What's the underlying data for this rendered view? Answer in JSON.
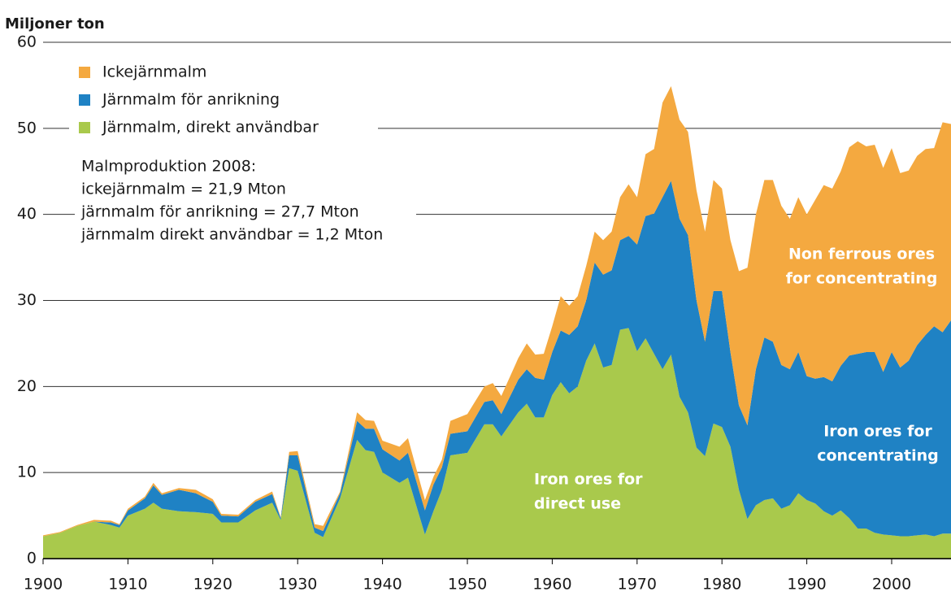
{
  "chart_data": {
    "type": "stacked_area",
    "axis_title": "Miljoner ton",
    "x": [
      1900,
      1902,
      1904,
      1906,
      1908,
      1909,
      1910,
      1912,
      1913,
      1914,
      1916,
      1918,
      1920,
      1921,
      1923,
      1925,
      1927,
      1928,
      1929,
      1930,
      1932,
      1933,
      1935,
      1937,
      1938,
      1939,
      1940,
      1942,
      1943,
      1945,
      1946,
      1947,
      1948,
      1950,
      1952,
      1953,
      1954,
      1956,
      1957,
      1958,
      1959,
      1960,
      1961,
      1962,
      1963,
      1964,
      1965,
      1966,
      1967,
      1968,
      1969,
      1970,
      1971,
      1972,
      1973,
      1974,
      1975,
      1976,
      1977,
      1978,
      1979,
      1980,
      1981,
      1982,
      1983,
      1984,
      1985,
      1986,
      1987,
      1988,
      1989,
      1990,
      1991,
      1992,
      1993,
      1994,
      1995,
      1996,
      1997,
      1998,
      1999,
      2000,
      2001,
      2002,
      2003,
      2004,
      2005,
      2006,
      2007
    ],
    "series": [
      {
        "name": "Järnmalm, direkt användbar",
        "color": "#a9c94c",
        "values": [
          2.6,
          3.0,
          3.8,
          4.3,
          3.9,
          3.6,
          5.0,
          5.8,
          6.5,
          5.8,
          5.5,
          5.4,
          5.2,
          4.2,
          4.2,
          5.6,
          6.5,
          4.5,
          10.5,
          10.2,
          3.0,
          2.5,
          7.0,
          13.8,
          12.6,
          12.4,
          10.0,
          8.8,
          9.4,
          2.8,
          5.5,
          8.0,
          12.0,
          12.3,
          15.6,
          15.6,
          14.2,
          17.0,
          18.0,
          16.4,
          16.4,
          19.0,
          20.5,
          19.2,
          20.0,
          23.0,
          25.0,
          22.2,
          22.5,
          26.6,
          26.8,
          24.1,
          25.6,
          23.8,
          22.0,
          23.7,
          18.8,
          17.0,
          12.9,
          11.9,
          15.7,
          15.3,
          13.0,
          8.0,
          4.6,
          6.2,
          6.8,
          7.0,
          5.8,
          6.2,
          7.6,
          6.8,
          6.4,
          5.5,
          5.0,
          5.6,
          4.7,
          3.5,
          3.5,
          3.0,
          2.8,
          2.7,
          2.6,
          2.6,
          2.7,
          2.8,
          2.6,
          2.9,
          2.9
        ]
      },
      {
        "name": "Järnmalm för anrikning",
        "color": "#1f82c4",
        "values": [
          0,
          0,
          0,
          0,
          0.3,
          0.3,
          0.6,
          1.2,
          2.0,
          1.6,
          2.5,
          2.2,
          1.4,
          0.8,
          0.7,
          1.0,
          1.0,
          0.2,
          1.5,
          1.8,
          0.6,
          0.7,
          0.6,
          2.2,
          2.5,
          2.7,
          2.7,
          2.6,
          2.9,
          2.8,
          3.1,
          2.6,
          2.5,
          2.5,
          2.6,
          2.8,
          2.6,
          3.8,
          4.0,
          4.6,
          4.4,
          5.0,
          6.0,
          6.8,
          7.0,
          7.0,
          9.4,
          10.8,
          11.0,
          10.4,
          10.7,
          12.4,
          14.2,
          16.3,
          20.0,
          20.2,
          20.7,
          20.6,
          17.1,
          13.3,
          15.4,
          15.8,
          11.0,
          9.8,
          10.9,
          15.8,
          18.9,
          18.2,
          16.7,
          15.8,
          16.4,
          14.4,
          14.5,
          15.6,
          15.6,
          16.8,
          18.9,
          20.3,
          20.5,
          21.0,
          18.9,
          21.3,
          19.6,
          20.4,
          22.1,
          23.2,
          24.4,
          23.4,
          24.8
        ]
      },
      {
        "name": "Ickejärnmalm",
        "color": "#f4a940",
        "values": [
          0.1,
          0.1,
          0.1,
          0.2,
          0.2,
          0.1,
          0.2,
          0.2,
          0.3,
          0.2,
          0.2,
          0.4,
          0.3,
          0.2,
          0.2,
          0.2,
          0.3,
          0.1,
          0.4,
          0.5,
          0.4,
          0.6,
          0.2,
          1.0,
          1.0,
          0.9,
          1.0,
          1.6,
          1.7,
          1.2,
          0.9,
          0.9,
          1.5,
          2.0,
          1.8,
          2.0,
          2.1,
          2.5,
          3.0,
          2.7,
          3.0,
          3.0,
          4.0,
          3.4,
          3.5,
          4.0,
          3.6,
          4.0,
          4.5,
          5.0,
          6.0,
          5.5,
          7.2,
          7.5,
          11.0,
          11.0,
          11.5,
          12.0,
          12.8,
          12.8,
          12.9,
          11.9,
          13.0,
          15.6,
          18.3,
          18.0,
          18.3,
          18.8,
          18.5,
          17.5,
          18.0,
          18.8,
          20.8,
          22.3,
          22.4,
          22.6,
          24.2,
          24.7,
          23.9,
          24.1,
          23.7,
          23.7,
          22.6,
          22.1,
          22.0,
          21.6,
          20.7,
          24.4,
          22.8
        ]
      }
    ],
    "legend_order": [
      2,
      1,
      0
    ],
    "annotations": [
      "Malmproduktion 2008:",
      "ickejärnmalm = 21,9 Mton",
      "järnmalm för anrikning = 27,7 Mton",
      "järnmalm direkt användbar = 1,2 Mton"
    ],
    "area_labels": [
      [
        "Non ferrous ores",
        "for concentrating"
      ],
      [
        "Iron ores for",
        "concentrating"
      ],
      [
        "Iron ores for",
        "direct use"
      ]
    ],
    "xlim": [
      1900,
      2007
    ],
    "xticks": [
      1900,
      1910,
      1920,
      1930,
      1940,
      1950,
      1960,
      1970,
      1980,
      1990,
      2000
    ],
    "ylim": [
      0,
      60
    ],
    "yticks": [
      0,
      10,
      20,
      30,
      40,
      50,
      60
    ],
    "grid": true
  }
}
